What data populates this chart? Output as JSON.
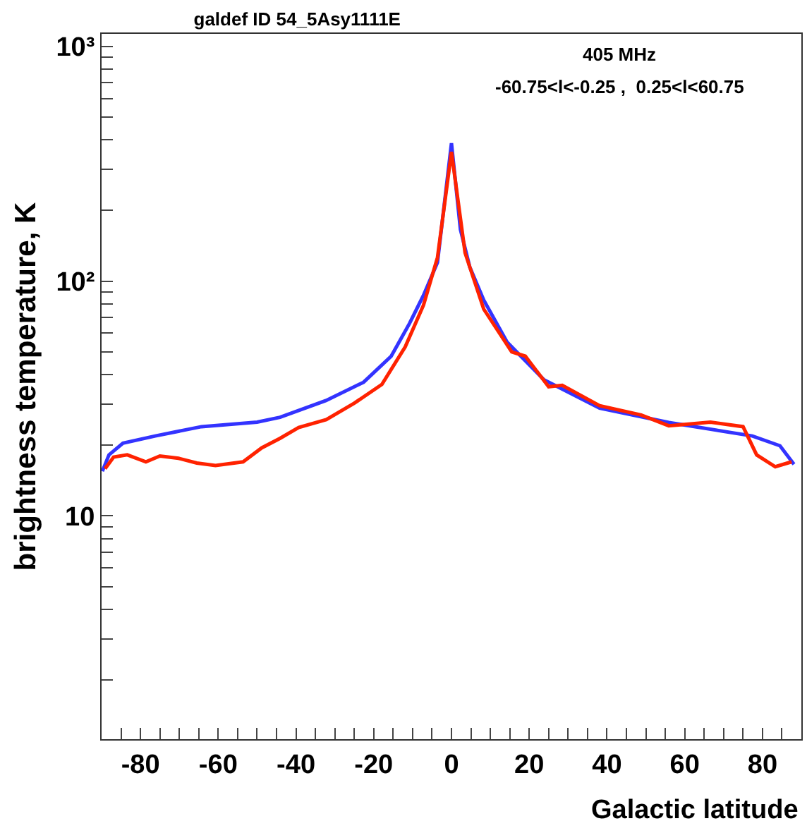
{
  "chart_data": {
    "type": "line",
    "title": "galdef ID 54_5Asy1111E",
    "xlabel": "Galactic latitude",
    "ylabel": "brightness temperature, K",
    "annotations": [
      "405 MHz",
      "-60.75<l<-0.25 ,  0.25<l<60.75"
    ],
    "series": [
      {
        "color": "#3333ff",
        "x": [
          -89.8,
          -88.1,
          -84.5,
          -76.2,
          -64.3,
          -50,
          -44.1,
          -32.3,
          -22.6,
          -15.5,
          -10.8,
          -7.2,
          -3.6,
          0,
          2.3,
          4.7,
          8.3,
          14.3,
          23.8,
          38.1,
          55.9,
          77.4,
          84.5,
          88.1
        ],
        "values": [
          15.5,
          18.2,
          20.4,
          21.9,
          24.0,
          25.1,
          26.3,
          31.0,
          37.1,
          47.9,
          66,
          87,
          120,
          387,
          166,
          115,
          83,
          55,
          38,
          28.8,
          25.0,
          21.9,
          19.9,
          16.6
        ]
      },
      {
        "color": "#ff2200",
        "x": [
          -89.1,
          -86.9,
          -83.4,
          -78.6,
          -75,
          -70.2,
          -65.5,
          -60.7,
          -53.6,
          -48.8,
          -44.1,
          -39.3,
          -32.2,
          -25.0,
          -17.9,
          -11.9,
          -7.2,
          -3.6,
          0,
          3.5,
          8.3,
          15.5,
          19.0,
          25,
          28.5,
          38.1,
          48.8,
          55.9,
          66.6,
          75,
          78.5,
          83.3,
          87.5
        ],
        "values": [
          15.9,
          17.8,
          18.2,
          17.0,
          18.0,
          17.6,
          16.8,
          16.4,
          17.0,
          19.5,
          21.4,
          23.8,
          25.7,
          30.2,
          36.3,
          52.5,
          79,
          126,
          355,
          132,
          76,
          50,
          47.9,
          35.5,
          36,
          29.5,
          26.9,
          24.2,
          25.1,
          24.0,
          18.2,
          16.2,
          17.0
        ]
      }
    ],
    "log": "y",
    "xlim": [
      -90,
      90
    ],
    "ylim": [
      1.12,
      1130
    ],
    "xticks": [
      {
        "value": -85,
        "label": null
      },
      -80,
      {
        "value": -75,
        "label": null
      },
      {
        "value": -70,
        "label": null
      },
      {
        "value": -65,
        "label": null
      },
      -60,
      {
        "value": -55,
        "label": null
      },
      {
        "value": -50,
        "label": null
      },
      {
        "value": -45,
        "label": null
      },
      -40,
      {
        "value": -35,
        "label": null
      },
      {
        "value": -30,
        "label": null
      },
      {
        "value": -25,
        "label": null
      },
      -20,
      {
        "value": -15,
        "label": null
      },
      {
        "value": -10,
        "label": null
      },
      {
        "value": -5,
        "label": null
      },
      0,
      {
        "value": 5,
        "label": null
      },
      {
        "value": 10,
        "label": null
      },
      {
        "value": 15,
        "label": null
      },
      20,
      {
        "value": 25,
        "label": null
      },
      {
        "value": 30,
        "label": null
      },
      {
        "value": 35,
        "label": null
      },
      40,
      {
        "value": 45,
        "label": null
      },
      {
        "value": 50,
        "label": null
      },
      {
        "value": 55,
        "label": null
      },
      60,
      {
        "value": 65,
        "label": null
      },
      {
        "value": 70,
        "label": null
      },
      {
        "value": 75,
        "label": null
      },
      80,
      {
        "value": 85,
        "label": null
      }
    ],
    "yticks": [
      {
        "value": 2,
        "label": null
      },
      {
        "value": 3,
        "label": null
      },
      {
        "value": 4,
        "label": null
      },
      {
        "value": 5,
        "label": null
      },
      {
        "value": 6,
        "label": null
      },
      {
        "value": 7,
        "label": null
      },
      {
        "value": 8,
        "label": null
      },
      {
        "value": 9,
        "label": null
      },
      10,
      {
        "value": 20,
        "label": null
      },
      {
        "value": 30,
        "label": null
      },
      {
        "value": 40,
        "label": null
      },
      {
        "value": 50,
        "label": null
      },
      {
        "value": 60,
        "label": null
      },
      {
        "value": 70,
        "label": null
      },
      {
        "value": 80,
        "label": null
      },
      {
        "value": 90,
        "label": null
      },
      {
        "value": 100,
        "label": "10²"
      },
      {
        "value": 200,
        "label": null
      },
      {
        "value": 300,
        "label": null
      },
      {
        "value": 400,
        "label": null
      },
      {
        "value": 500,
        "label": null
      },
      {
        "value": 600,
        "label": null
      },
      {
        "value": 700,
        "label": null
      },
      {
        "value": 800,
        "label": null
      },
      {
        "value": 900,
        "label": null
      },
      {
        "value": 1000,
        "label": "10³"
      }
    ],
    "marker": "none",
    "line_style": "solid"
  }
}
